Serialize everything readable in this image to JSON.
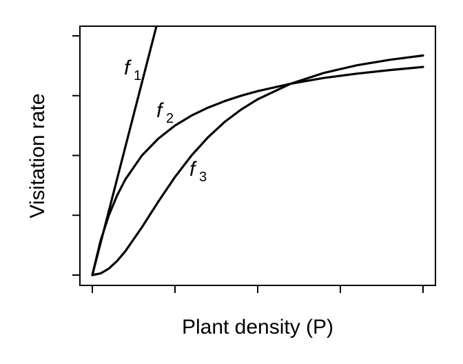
{
  "chart_data": {
    "type": "line",
    "xlabel": "Plant density (P)",
    "ylabel": "Visitation rate",
    "xlim": [
      0,
      1
    ],
    "ylim": [
      0,
      1
    ],
    "x_ticks_count": 5,
    "y_ticks_count": 5,
    "tick_labels_shown": false,
    "grid": false,
    "legend": "none",
    "series": [
      {
        "label_letter": "f",
        "label_sub": "1",
        "x": [
          0,
          0.205
        ],
        "y": [
          0,
          1.1
        ]
      },
      {
        "label_letter": "f",
        "label_sub": "2",
        "x": [
          0,
          0.025,
          0.05,
          0.075,
          0.1,
          0.15,
          0.2,
          0.25,
          0.3,
          0.35,
          0.4,
          0.45,
          0.5,
          0.6,
          0.7,
          0.8,
          0.9,
          1.0
        ],
        "y": [
          0,
          0.144,
          0.25,
          0.333,
          0.4,
          0.5,
          0.571,
          0.625,
          0.667,
          0.7,
          0.727,
          0.75,
          0.769,
          0.8,
          0.824,
          0.842,
          0.857,
          0.87
        ]
      },
      {
        "label_letter": "f",
        "label_sub": "3",
        "x": [
          0,
          0.025,
          0.05,
          0.075,
          0.1,
          0.15,
          0.2,
          0.25,
          0.3,
          0.35,
          0.4,
          0.45,
          0.5,
          0.6,
          0.7,
          0.8,
          0.9,
          1.0
        ],
        "y": [
          0,
          0.007,
          0.027,
          0.059,
          0.1,
          0.2,
          0.308,
          0.41,
          0.5,
          0.576,
          0.64,
          0.692,
          0.735,
          0.8,
          0.845,
          0.877,
          0.9,
          0.918
        ]
      }
    ]
  }
}
